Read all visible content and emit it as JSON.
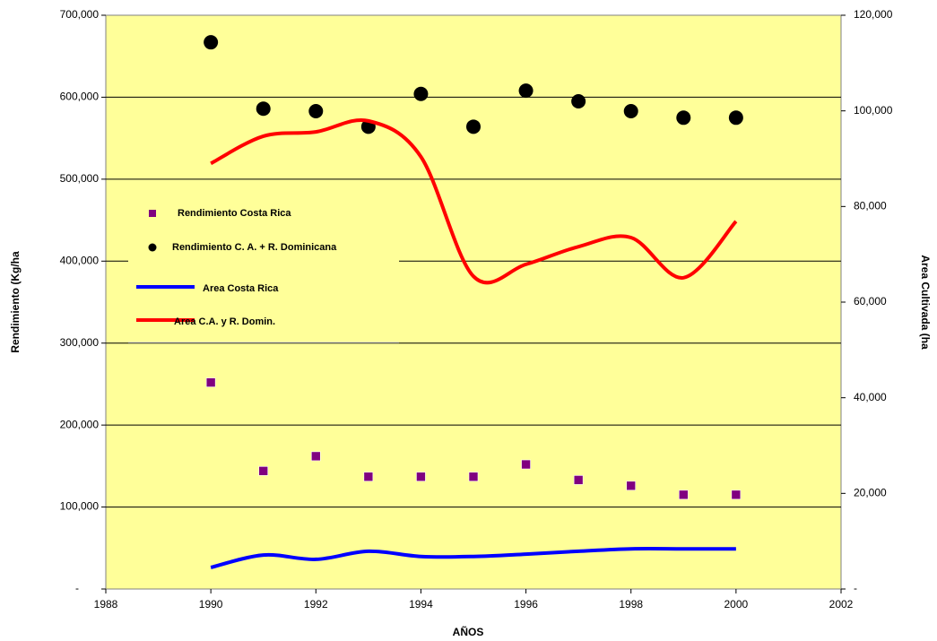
{
  "chart_data": {
    "type": "combo",
    "x_label": "AÑOS",
    "y_label": "Rendimiento (Kg/ha",
    "y2_label": "Area Cultivada (ha",
    "x": [
      1990,
      1991,
      1992,
      1993,
      1994,
      1995,
      1996,
      1997,
      1998,
      1999,
      2000
    ],
    "xlim": [
      1988,
      2002
    ],
    "xticks": [
      1988,
      1990,
      1992,
      1994,
      1996,
      1998,
      2000,
      2002
    ],
    "ylim": [
      0,
      700000
    ],
    "yticks": [
      {
        "value": 0,
        "label": "-"
      },
      {
        "value": 100000,
        "label": "100,000"
      },
      {
        "value": 200000,
        "label": "200,000"
      },
      {
        "value": 300000,
        "label": "300,000"
      },
      {
        "value": 400000,
        "label": "400,000"
      },
      {
        "value": 500000,
        "label": "500,000"
      },
      {
        "value": 600000,
        "label": "600,000"
      },
      {
        "value": 700000,
        "label": "700,000"
      }
    ],
    "y2lim": [
      0,
      120000
    ],
    "y2ticks": [
      {
        "value": 0,
        "label": "-"
      },
      {
        "value": 20000,
        "label": "20,000"
      },
      {
        "value": 40000,
        "label": "40,000"
      },
      {
        "value": 60000,
        "label": "60,000"
      },
      {
        "value": 80000,
        "label": "80,000"
      },
      {
        "value": 100000,
        "label": "100,000"
      },
      {
        "value": 120000,
        "label": "120,000"
      }
    ],
    "grid": true,
    "background": "#ffff99",
    "series": [
      {
        "name": "Rendimiento Costa Rica",
        "type": "scatter",
        "marker": "square",
        "color": "#800080",
        "values": [
          252000,
          144000,
          162000,
          137000,
          137000,
          137000,
          152000,
          133000,
          126000,
          115000,
          115000
        ]
      },
      {
        "name": "Rendimiento C. A. + R. Dominicana",
        "type": "scatter",
        "marker": "circle",
        "color": "#000000",
        "values": [
          667000,
          586000,
          583000,
          564000,
          604000,
          564000,
          608000,
          595000,
          583000,
          575000,
          575000
        ]
      },
      {
        "name": "Area Costa  Rica",
        "type": "line",
        "axis": "y2",
        "color": "#0000ff",
        "values": [
          4500,
          7100,
          6200,
          7900,
          6800,
          6800,
          7300,
          7900,
          8400,
          8400,
          8400
        ]
      },
      {
        "name": "Area C.A. y R. Domin.",
        "type": "line",
        "axis": "y2",
        "color": "#ff0000",
        "values": [
          89000,
          94700,
          95600,
          97900,
          90400,
          65400,
          67900,
          71600,
          73500,
          65100,
          76900
        ]
      }
    ]
  }
}
